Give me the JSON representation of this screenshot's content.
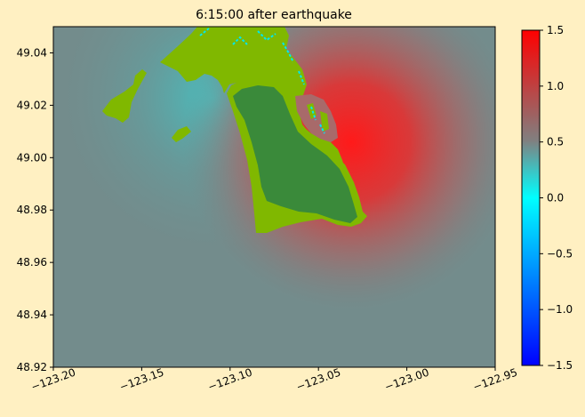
{
  "chart_data": {
    "type": "heatmap",
    "title": "6:15:00 after earthquake",
    "xlabel": "",
    "ylabel": "",
    "xlim": [
      -123.2,
      -122.95
    ],
    "ylim": [
      48.92,
      49.05
    ],
    "x_ticks": [
      -123.2,
      -123.15,
      -123.1,
      -123.05,
      -123.0,
      -122.95
    ],
    "x_tick_labels": [
      "−123.20",
      "−123.15",
      "−123.10",
      "−123.05",
      "−123.00",
      "−122.95"
    ],
    "y_ticks": [
      48.92,
      48.94,
      48.96,
      48.98,
      49.0,
      49.02,
      49.04
    ],
    "y_tick_labels": [
      "48.92",
      "48.94",
      "48.96",
      "48.98",
      "49.00",
      "49.02",
      "49.04"
    ],
    "colorbar": {
      "range": [
        -1.5,
        1.5
      ],
      "ticks": [
        -1.5,
        -1.0,
        -0.5,
        0.0,
        0.5,
        1.0,
        1.5
      ],
      "tick_labels": [
        "−1.5",
        "−1.0",
        "−0.5",
        "0.0",
        "0.5",
        "1.0",
        "1.5"
      ],
      "colors": [
        "#0000ff",
        "#00ffff",
        "#808080",
        "#ff0000"
      ]
    },
    "grid": false,
    "land_colors": [
      "#3a8a3a",
      "#80b800"
    ]
  }
}
